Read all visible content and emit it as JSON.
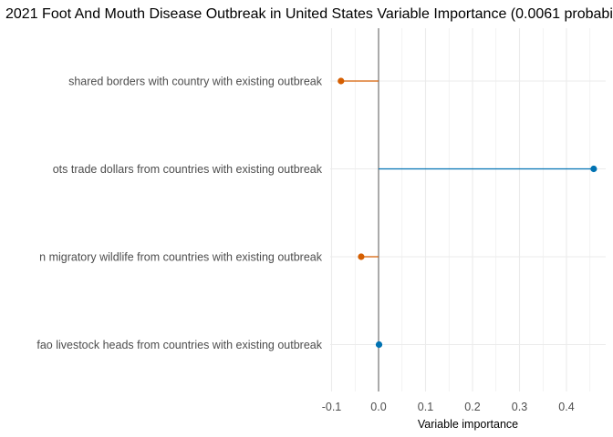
{
  "chart_data": {
    "type": "lollipop",
    "title": "2021 Foot And Mouth Disease Outbreak in United States Variable Importance (0.0061 probabil",
    "xlabel": "Variable importance",
    "ylabel": "",
    "xlim": [
      -0.1,
      0.48
    ],
    "x_ticks": [
      -0.1,
      0.0,
      0.1,
      0.2,
      0.3,
      0.4
    ],
    "x_tick_labels": [
      "-0.1",
      "0.0",
      "0.1",
      "0.2",
      "0.3",
      "0.4"
    ],
    "grid": true,
    "colors": {
      "negative": "#d55e00",
      "positive": "#0072b2",
      "zero_line": "#7f7f7f",
      "grid": "#ebebeb"
    },
    "items": [
      {
        "label": "shared borders with country with existing outbreak",
        "value": -0.08
      },
      {
        "label": "ots trade dollars from countries with existing outbreak",
        "value": 0.458
      },
      {
        "label": "n migratory wildlife from countries with existing outbreak",
        "value": -0.037
      },
      {
        "label": "fao livestock heads from countries with existing outbreak",
        "value": 0.001
      }
    ]
  }
}
